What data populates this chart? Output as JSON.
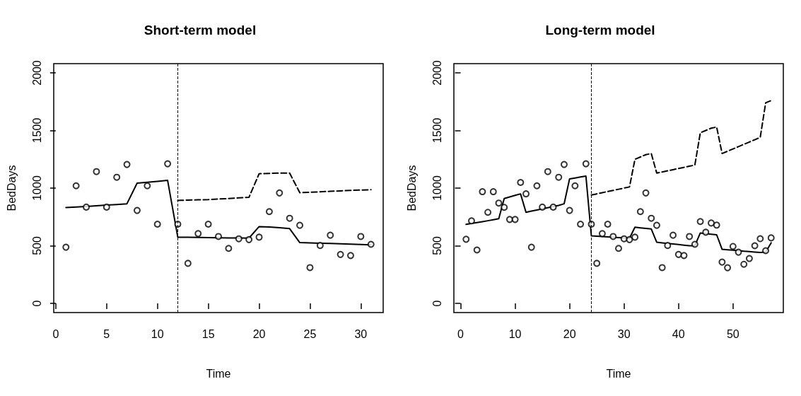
{
  "chart_data": [
    {
      "type": "scatter",
      "title": "Short-term model",
      "xlabel": "Time",
      "ylabel": "BedDays",
      "xlim": [
        -0.2,
        32.2
      ],
      "xticks": [
        0,
        5,
        10,
        15,
        20,
        25,
        30
      ],
      "ylim": [
        -80,
        2080
      ],
      "yticks": [
        0,
        500,
        1000,
        1500,
        2000
      ],
      "series": [
        {
          "color": "#000000",
          "marker": "circle",
          "x": [
            1,
            2,
            3,
            4,
            5,
            6,
            7,
            8,
            9,
            10,
            11,
            12,
            13,
            14,
            15,
            16,
            17,
            18,
            19,
            20,
            21,
            22,
            23,
            24,
            25,
            26,
            27,
            28,
            29,
            30,
            31
          ],
          "values": [
            487,
            1020,
            835,
            1143,
            835,
            1094,
            1205,
            806,
            1020,
            687,
            1211,
            687,
            347,
            605,
            687,
            580,
            477,
            560,
            553,
            574,
            796,
            958,
            738,
            677,
            310,
            502,
            591,
            424,
            415,
            580,
            512
          ]
        },
        {
          "type": "line",
          "color": "#000000",
          "marker": "none",
          "line_style": "solid",
          "x": [
            1,
            2,
            3,
            4,
            5,
            6,
            7,
            8,
            9,
            10,
            11,
            12,
            13,
            14,
            15,
            16,
            17,
            18,
            19,
            20,
            21,
            22,
            23,
            24,
            25,
            26,
            27,
            28,
            29,
            30,
            31
          ],
          "values": [
            831,
            836,
            841,
            847,
            852,
            858,
            864,
            1043,
            1051,
            1059,
            1067,
            574,
            573,
            572,
            570,
            569,
            568,
            567,
            566,
            666,
            662,
            656,
            648,
            527,
            525,
            522,
            520,
            517,
            514,
            511,
            508
          ]
        },
        {
          "type": "line",
          "color": "#000000",
          "marker": "none",
          "line_style": "dashed",
          "x": [
            12,
            13,
            14,
            15,
            16,
            17,
            18,
            19,
            20,
            21,
            22,
            23,
            24,
            25,
            26,
            27,
            28,
            29,
            30,
            31
          ],
          "values": [
            893,
            896,
            898,
            900,
            905,
            910,
            915,
            920,
            1125,
            1128,
            1130,
            1130,
            960,
            964,
            968,
            972,
            976,
            980,
            983,
            986
          ]
        }
      ],
      "ref_lines": [
        {
          "axis": "x",
          "value": 12,
          "color": "#000000",
          "line_style": "dashed"
        }
      ]
    },
    {
      "type": "scatter",
      "title": "Long-term model",
      "xlabel": "Time",
      "ylabel": "BedDays",
      "xlim": [
        -1.24,
        59.24
      ],
      "xticks": [
        0,
        10,
        20,
        30,
        40,
        50
      ],
      "ylim": [
        -80,
        2080
      ],
      "yticks": [
        0,
        500,
        1000,
        1500,
        2000
      ],
      "series": [
        {
          "color": "#000000",
          "marker": "circle",
          "x": [
            1,
            2,
            3,
            4,
            5,
            6,
            7,
            8,
            9,
            10,
            11,
            12,
            13,
            14,
            15,
            16,
            17,
            18,
            19,
            20,
            21,
            22,
            23,
            24,
            25,
            26,
            27,
            28,
            29,
            30,
            31,
            32,
            33,
            34,
            35,
            36,
            37,
            38,
            39,
            40,
            41,
            42,
            43,
            44,
            45,
            46,
            47,
            48,
            49,
            50,
            51,
            52,
            53,
            54,
            55,
            56,
            57
          ],
          "values": [
            556,
            716,
            463,
            969,
            790,
            969,
            870,
            833,
            728,
            728,
            1049,
            950,
            487,
            1020,
            835,
            1143,
            835,
            1094,
            1205,
            806,
            1020,
            687,
            1211,
            687,
            347,
            605,
            687,
            580,
            477,
            560,
            553,
            574,
            796,
            958,
            738,
            677,
            310,
            502,
            591,
            424,
            415,
            580,
            512,
            710,
            617,
            697,
            679,
            358,
            309,
            494,
            444,
            339,
            389,
            500,
            561,
            457,
            568
          ]
        },
        {
          "type": "line",
          "color": "#000000",
          "marker": "none",
          "line_style": "solid",
          "x": [
            1,
            2,
            3,
            4,
            5,
            6,
            7,
            8,
            9,
            10,
            11,
            12,
            13,
            14,
            15,
            16,
            17,
            18,
            19,
            20,
            21,
            22,
            23,
            24,
            25,
            26,
            27,
            28,
            29,
            30,
            31,
            32,
            33,
            34,
            35,
            36,
            37,
            38,
            39,
            40,
            41,
            42,
            43,
            44,
            45,
            46,
            47,
            48,
            49,
            50,
            51,
            52,
            53,
            54,
            55,
            56,
            57
          ],
          "values": [
            685,
            693,
            701,
            709,
            717,
            725,
            734,
            910,
            923,
            937,
            950,
            790,
            800,
            810,
            820,
            830,
            840,
            850,
            864,
            1080,
            1088,
            1096,
            1104,
            586,
            583,
            580,
            577,
            573,
            570,
            567,
            564,
            661,
            655,
            650,
            645,
            530,
            525,
            520,
            515,
            510,
            505,
            500,
            500,
            611,
            605,
            600,
            595,
            469,
            465,
            461,
            457,
            453,
            449,
            445,
            441,
            444,
            525
          ]
        },
        {
          "type": "line",
          "color": "#000000",
          "marker": "none",
          "line_style": "dashed",
          "x": [
            24,
            25,
            26,
            27,
            28,
            29,
            30,
            31,
            32,
            33,
            34,
            35,
            36,
            37,
            38,
            39,
            40,
            41,
            42,
            43,
            44,
            45,
            46,
            47,
            48,
            49,
            50,
            51,
            52,
            53,
            54,
            55,
            56,
            57
          ],
          "values": [
            940,
            950,
            960,
            970,
            980,
            990,
            1000,
            1010,
            1250,
            1270,
            1290,
            1300,
            1130,
            1140,
            1150,
            1160,
            1170,
            1180,
            1190,
            1200,
            1480,
            1500,
            1520,
            1530,
            1300,
            1320,
            1340,
            1360,
            1380,
            1400,
            1420,
            1440,
            1740,
            1760
          ]
        }
      ],
      "ref_lines": [
        {
          "axis": "x",
          "value": 24,
          "color": "#000000",
          "line_style": "dashed"
        }
      ]
    }
  ]
}
